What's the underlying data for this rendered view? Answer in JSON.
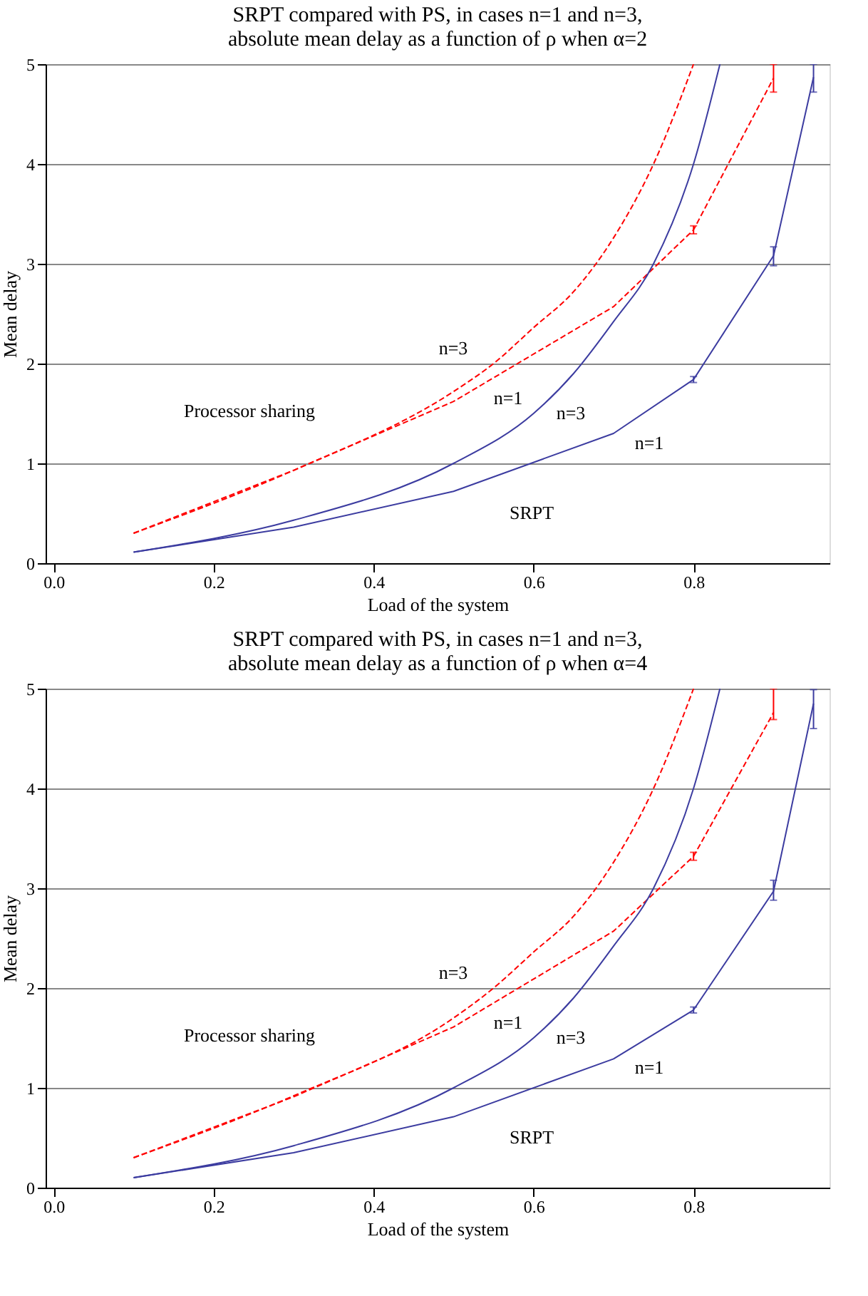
{
  "chart_data": [
    {
      "type": "line",
      "title": "SRPT compared with PS, in cases n=1 and n=3,\nabsolute mean delay as a function of ρ when α=2",
      "xlabel": "Load of the system",
      "ylabel": "Mean delay",
      "xlim": [
        -0.01,
        0.97
      ],
      "xticks": [
        {
          "value": 0,
          "label": "0.0"
        },
        0.2,
        0.4,
        0.6,
        0.8
      ],
      "ylim": [
        0,
        5
      ],
      "yticks": [
        0,
        1,
        2,
        3,
        4,
        5
      ],
      "grid": "y",
      "series": [
        {
          "color": "#ff0000",
          "line_style": "dashed",
          "x": [
            0.1,
            0.3,
            0.5,
            0.55,
            0.6,
            0.65,
            0.7,
            0.75,
            0.8
          ],
          "values": [
            0.3,
            0.93,
            1.72,
            2.0,
            2.36,
            2.72,
            3.26,
            4.0,
            5.0
          ]
        },
        {
          "color": "#ff0000",
          "line_style": "dashed",
          "x": [
            0.1,
            0.3,
            0.5,
            0.7,
            0.8,
            0.9
          ],
          "values": [
            0.3,
            0.93,
            1.62,
            2.57,
            3.34,
            4.86
          ],
          "errors": [
            null,
            null,
            null,
            null,
            0.04,
            [
              4.72,
              5.0
            ]
          ]
        },
        {
          "color": "#3c3ca0",
          "line_style": "solid",
          "x": [
            0.1,
            0.3,
            0.5,
            0.6,
            0.65,
            0.7,
            0.75,
            0.8,
            0.833
          ],
          "values": [
            0.11,
            0.43,
            1.0,
            1.5,
            1.9,
            2.42,
            3.0,
            4.0,
            5.0
          ]
        },
        {
          "color": "#3c3ca0",
          "line_style": "solid",
          "x": [
            0.1,
            0.3,
            0.5,
            0.7,
            0.8,
            0.9,
            0.95
          ],
          "values": [
            0.11,
            0.36,
            0.72,
            1.3,
            1.84,
            3.08,
            4.87
          ],
          "errors": [
            null,
            null,
            null,
            null,
            0.03,
            [
              2.98,
              3.17
            ],
            [
              4.72,
              5.0
            ]
          ]
        }
      ],
      "annotations": [
        "n=3",
        "n=1",
        "Processor sharing",
        "n=3",
        "n=1",
        "SRPT"
      ]
    },
    {
      "type": "line",
      "title": "SRPT compared with PS, in cases n=1 and n=3,\nabsolute mean delay as a function of ρ when α=4",
      "xlabel": "Load of the system",
      "ylabel": "Mean delay",
      "xlim": [
        -0.01,
        0.97
      ],
      "xticks": [
        {
          "value": 0,
          "label": "0.0"
        },
        0.2,
        0.4,
        0.6,
        0.8
      ],
      "ylim": [
        0,
        5
      ],
      "yticks": [
        0,
        1,
        2,
        3,
        4,
        5
      ],
      "grid": "y",
      "series": [
        {
          "color": "#ff0000",
          "line_style": "dashed",
          "x": [
            0.1,
            0.3,
            0.5,
            0.55,
            0.6,
            0.65,
            0.7,
            0.75,
            0.8
          ],
          "values": [
            0.3,
            0.92,
            1.7,
            2.0,
            2.36,
            2.72,
            3.26,
            4.0,
            5.0
          ]
        },
        {
          "color": "#ff0000",
          "line_style": "dashed",
          "x": [
            0.1,
            0.3,
            0.5,
            0.7,
            0.8,
            0.9
          ],
          "values": [
            0.3,
            0.91,
            1.61,
            2.57,
            3.32,
            4.76
          ],
          "errors": [
            null,
            null,
            null,
            null,
            0.04,
            [
              4.69,
              5.0
            ]
          ]
        },
        {
          "color": "#3c3ca0",
          "line_style": "solid",
          "x": [
            0.1,
            0.3,
            0.5,
            0.6,
            0.65,
            0.7,
            0.75,
            0.8,
            0.833
          ],
          "values": [
            0.1,
            0.42,
            1.0,
            1.5,
            1.9,
            2.42,
            3.0,
            4.0,
            5.0
          ]
        },
        {
          "color": "#3c3ca0",
          "line_style": "solid",
          "x": [
            0.1,
            0.3,
            0.5,
            0.7,
            0.8,
            0.9,
            0.95
          ],
          "values": [
            0.1,
            0.35,
            0.71,
            1.29,
            1.78,
            2.97,
            4.85
          ],
          "errors": [
            null,
            null,
            null,
            null,
            0.03,
            [
              2.88,
              3.08
            ],
            [
              4.6,
              4.99
            ]
          ]
        }
      ],
      "annotations": [
        "n=3",
        "n=1",
        "Processor sharing",
        "n=3",
        "n=1",
        "SRPT"
      ]
    }
  ]
}
